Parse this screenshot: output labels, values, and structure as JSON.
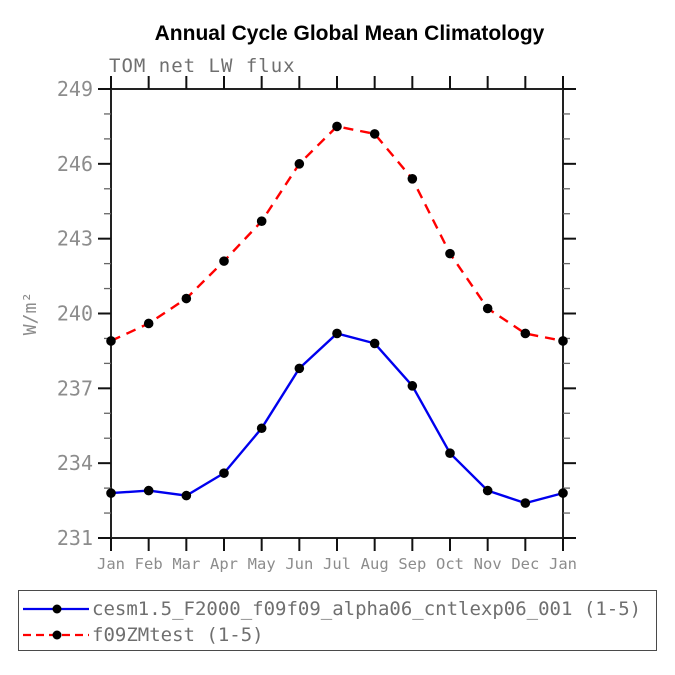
{
  "chart_data": {
    "type": "line",
    "title": "Annual Cycle Global Mean Climatology",
    "subtitle": "TOM net LW flux",
    "ylabel": "W/m²",
    "xlabel": "",
    "categories": [
      "Jan",
      "Feb",
      "Mar",
      "Apr",
      "May",
      "Jun",
      "Jul",
      "Aug",
      "Sep",
      "Oct",
      "Nov",
      "Dec",
      "Jan"
    ],
    "ylim": [
      231,
      249
    ],
    "ytick_major_step": 3,
    "ytick_minor_step": 1,
    "ytick_labels": [
      231,
      234,
      237,
      240,
      243,
      246,
      249
    ],
    "grid": false,
    "legend_position": "bottom-outside-box",
    "marker": "filled-circle",
    "marker_color": "#000000",
    "series": [
      {
        "name": "cesm1.5_F2000_f09f09_alpha06_cntlexp06_001 (1-5)",
        "color": "#0000ee",
        "style": "solid",
        "values": [
          232.8,
          232.9,
          232.7,
          233.6,
          235.4,
          237.8,
          239.2,
          238.8,
          237.1,
          234.4,
          232.9,
          232.4,
          232.8
        ]
      },
      {
        "name": "f09ZMtest (1-5)",
        "color": "#ff0000",
        "style": "dashed",
        "values": [
          238.9,
          239.6,
          240.6,
          242.1,
          243.7,
          246.0,
          247.5,
          247.2,
          245.4,
          242.4,
          240.2,
          239.2,
          238.9
        ]
      }
    ]
  },
  "colors": {
    "frame": "#222222",
    "major_tick": "#111111",
    "minor_tick": "#666666",
    "axis_text": "#8c8c8c",
    "subtitle_text": "#6f6f6f",
    "legend_text": "#6f6f6f",
    "title_text": "#000000",
    "background": "#ffffff"
  }
}
